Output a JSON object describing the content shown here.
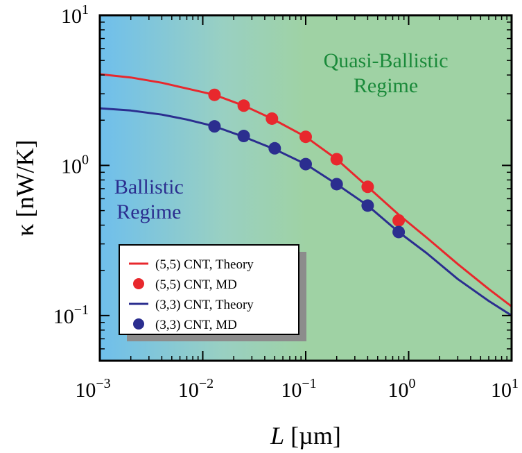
{
  "chart_data": {
    "type": "line",
    "xscale": "log",
    "yscale": "log",
    "xlim": [
      0.001,
      10
    ],
    "ylim": [
      0.05,
      10
    ],
    "xlabel": {
      "italic": "L",
      "rest": " [µm]"
    },
    "ylabel": "κ [nW/K]",
    "x_ticks": [
      {
        "value": 0.001,
        "base": "10",
        "exp": "−3"
      },
      {
        "value": 0.01,
        "base": "10",
        "exp": "−2"
      },
      {
        "value": 0.1,
        "base": "10",
        "exp": "−1"
      },
      {
        "value": 1,
        "base": "10",
        "exp": "0"
      },
      {
        "value": 10,
        "base": "10",
        "exp": "1"
      }
    ],
    "y_ticks": [
      {
        "value": 0.1,
        "base": "10",
        "exp": "−1"
      },
      {
        "value": 1,
        "base": "10",
        "exp": "0"
      },
      {
        "value": 10,
        "base": "10",
        "exp": "1"
      }
    ],
    "background": {
      "left_color": "#6fbfec",
      "mid_color": "#99d0c2",
      "right_color": "#9fd2a4"
    },
    "annotations": [
      {
        "lines": [
          "Quasi-Ballistic",
          "Regime"
        ],
        "color": "#1a8a3a",
        "x": 0.6,
        "y": 4.5
      },
      {
        "lines": [
          "Ballistic",
          "Regime"
        ],
        "color": "#2b2e8f",
        "x": 0.003,
        "y": 0.65
      }
    ],
    "series": [
      {
        "name": "(5,5) CNT, Theory",
        "kind": "line",
        "color": "#e8282d",
        "x": [
          0.001,
          0.002,
          0.004,
          0.007,
          0.013,
          0.025,
          0.047,
          0.1,
          0.2,
          0.4,
          0.8,
          1.5,
          3,
          6,
          10
        ],
        "y": [
          4.05,
          3.85,
          3.55,
          3.25,
          2.95,
          2.5,
          2.05,
          1.55,
          1.1,
          0.72,
          0.47,
          0.33,
          0.22,
          0.15,
          0.115
        ]
      },
      {
        "name": "(5,5) CNT, MD",
        "kind": "points",
        "color": "#e8282d",
        "x": [
          0.013,
          0.025,
          0.047,
          0.1,
          0.2,
          0.4,
          0.8
        ],
        "y": [
          2.95,
          2.5,
          2.05,
          1.55,
          1.1,
          0.72,
          0.43
        ]
      },
      {
        "name": "(3,3) CNT, Theory",
        "kind": "line",
        "color": "#2b2e8f",
        "x": [
          0.001,
          0.002,
          0.004,
          0.007,
          0.013,
          0.025,
          0.05,
          0.1,
          0.2,
          0.4,
          0.8,
          1.5,
          3,
          6,
          10
        ],
        "y": [
          2.4,
          2.32,
          2.18,
          2.02,
          1.82,
          1.55,
          1.28,
          1.02,
          0.75,
          0.54,
          0.36,
          0.26,
          0.175,
          0.125,
          0.1
        ]
      },
      {
        "name": "(3,3) CNT, MD",
        "kind": "points",
        "color": "#2b2e8f",
        "x": [
          0.013,
          0.025,
          0.05,
          0.1,
          0.2,
          0.4,
          0.8
        ],
        "y": [
          1.82,
          1.57,
          1.3,
          1.02,
          0.75,
          0.54,
          0.36
        ]
      }
    ],
    "legend": {
      "placement": "lower-left",
      "entries": [
        {
          "label": "(5,5) CNT, Theory",
          "symbol": "line",
          "color": "#e8282d"
        },
        {
          "label": "(5,5) CNT, MD",
          "symbol": "circle",
          "color": "#e8282d"
        },
        {
          "label": "(3,3) CNT, Theory",
          "symbol": "line",
          "color": "#2b2e8f"
        },
        {
          "label": "(3,3) CNT, MD",
          "symbol": "circle",
          "color": "#2b2e8f"
        }
      ]
    }
  }
}
